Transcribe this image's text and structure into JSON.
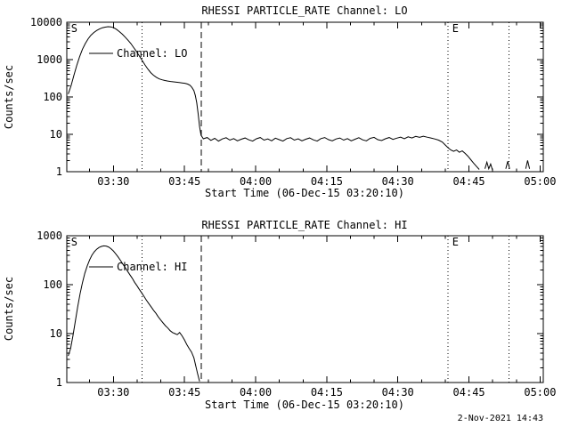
{
  "page": {
    "timestamp": "2-Nov-2021 14:43"
  },
  "chart_data": [
    {
      "id": "lo",
      "type": "line",
      "title": "RHESSI PARTICLE_RATE Channel: LO",
      "xlabel": "Start Time (06-Dec-15 03:20:10)",
      "ylabel": "Counts/sec",
      "legend": "Channel: LO",
      "x_min": 0,
      "x_max": 100.5,
      "x_ticks": [
        {
          "t": 9.83,
          "label": "03:30"
        },
        {
          "t": 24.83,
          "label": "03:45"
        },
        {
          "t": 39.83,
          "label": "04:00"
        },
        {
          "t": 54.83,
          "label": "04:15"
        },
        {
          "t": 69.83,
          "label": "04:30"
        },
        {
          "t": 84.83,
          "label": "04:45"
        },
        {
          "t": 99.83,
          "label": "05:00"
        }
      ],
      "x_minor_start": 4.83,
      "x_minor_step": 5,
      "ylim": [
        1,
        10000
      ],
      "y_ticks": [
        1,
        10,
        100,
        1000,
        10000
      ],
      "grid": false,
      "legend_position": "upper-left-inside",
      "vlines": [
        {
          "t": 15.9,
          "style": "dotted"
        },
        {
          "t": 28.4,
          "style": "dashed"
        },
        {
          "t": 80.4,
          "style": "dotted"
        },
        {
          "t": 93.3,
          "style": "dotted"
        }
      ],
      "flags": [
        {
          "t": 0.9,
          "label": "S"
        },
        {
          "t": 81.3,
          "label": "E"
        }
      ],
      "points": [
        [
          0.3,
          120
        ],
        [
          0.9,
          200
        ],
        [
          1.5,
          380
        ],
        [
          2.1,
          700
        ],
        [
          2.7,
          1200
        ],
        [
          3.3,
          1900
        ],
        [
          3.9,
          2700
        ],
        [
          4.5,
          3600
        ],
        [
          5.1,
          4500
        ],
        [
          5.7,
          5300
        ],
        [
          6.3,
          6000
        ],
        [
          6.9,
          6600
        ],
        [
          7.5,
          7100
        ],
        [
          8.1,
          7400
        ],
        [
          8.7,
          7600
        ],
        [
          9.3,
          7500
        ],
        [
          9.9,
          7100
        ],
        [
          10.5,
          6400
        ],
        [
          11.1,
          5600
        ],
        [
          11.7,
          4800
        ],
        [
          12.3,
          4000
        ],
        [
          12.9,
          3300
        ],
        [
          13.5,
          2700
        ],
        [
          14.1,
          2100
        ],
        [
          14.7,
          1650
        ],
        [
          15.3,
          1250
        ],
        [
          15.9,
          950
        ],
        [
          16.5,
          720
        ],
        [
          17.1,
          560
        ],
        [
          17.7,
          450
        ],
        [
          18.3,
          380
        ],
        [
          18.9,
          335
        ],
        [
          19.5,
          305
        ],
        [
          20.1,
          288
        ],
        [
          20.7,
          276
        ],
        [
          21.3,
          267
        ],
        [
          21.9,
          260
        ],
        [
          22.5,
          254
        ],
        [
          23.1,
          248
        ],
        [
          23.7,
          243
        ],
        [
          24.3,
          238
        ],
        [
          24.9,
          232
        ],
        [
          25.5,
          222
        ],
        [
          26.0,
          205
        ],
        [
          26.4,
          180
        ],
        [
          26.8,
          148
        ],
        [
          27.1,
          110
        ],
        [
          27.4,
          70
        ],
        [
          27.7,
          35
        ],
        [
          28.0,
          16
        ],
        [
          28.3,
          9.5
        ],
        [
          28.8,
          7.6
        ],
        [
          29.6,
          8.2
        ],
        [
          30.4,
          6.9
        ],
        [
          31.2,
          7.8
        ],
        [
          32.0,
          6.6
        ],
        [
          32.8,
          7.5
        ],
        [
          33.6,
          8.1
        ],
        [
          34.4,
          7.0
        ],
        [
          35.2,
          7.7
        ],
        [
          36.0,
          6.7
        ],
        [
          36.8,
          7.4
        ],
        [
          37.6,
          8.0
        ],
        [
          38.4,
          7.1
        ],
        [
          39.2,
          6.6
        ],
        [
          40.0,
          7.6
        ],
        [
          40.8,
          8.2
        ],
        [
          41.6,
          7.0
        ],
        [
          42.4,
          7.5
        ],
        [
          43.2,
          6.7
        ],
        [
          44.0,
          7.9
        ],
        [
          44.8,
          7.2
        ],
        [
          45.6,
          6.6
        ],
        [
          46.4,
          7.7
        ],
        [
          47.2,
          8.1
        ],
        [
          48.0,
          7.0
        ],
        [
          48.8,
          7.6
        ],
        [
          49.6,
          6.7
        ],
        [
          50.4,
          7.4
        ],
        [
          51.2,
          8.0
        ],
        [
          52.0,
          7.1
        ],
        [
          52.8,
          6.6
        ],
        [
          53.6,
          7.7
        ],
        [
          54.4,
          8.2
        ],
        [
          55.2,
          7.2
        ],
        [
          56.0,
          6.7
        ],
        [
          56.8,
          7.5
        ],
        [
          57.6,
          8.0
        ],
        [
          58.4,
          7.0
        ],
        [
          59.2,
          7.7
        ],
        [
          60.0,
          6.7
        ],
        [
          60.8,
          7.4
        ],
        [
          61.6,
          8.1
        ],
        [
          62.4,
          7.1
        ],
        [
          63.2,
          6.7
        ],
        [
          64.0,
          7.8
        ],
        [
          64.8,
          8.3
        ],
        [
          65.6,
          7.2
        ],
        [
          66.4,
          6.8
        ],
        [
          67.2,
          7.6
        ],
        [
          68.0,
          8.2
        ],
        [
          68.8,
          7.3
        ],
        [
          69.6,
          7.9
        ],
        [
          70.4,
          8.4
        ],
        [
          71.2,
          7.6
        ],
        [
          72.0,
          8.6
        ],
        [
          72.8,
          8.0
        ],
        [
          73.6,
          8.8
        ],
        [
          74.4,
          8.3
        ],
        [
          75.2,
          8.9
        ],
        [
          76.0,
          8.4
        ],
        [
          76.8,
          8.0
        ],
        [
          77.6,
          7.5
        ],
        [
          78.4,
          7.0
        ],
        [
          79.2,
          6.2
        ],
        [
          79.8,
          5.2
        ],
        [
          80.4,
          4.4
        ],
        [
          81.0,
          3.8
        ],
        [
          81.6,
          3.5
        ],
        [
          82.2,
          3.8
        ],
        [
          82.8,
          3.3
        ],
        [
          83.4,
          3.6
        ],
        [
          84.0,
          3.1
        ],
        [
          84.6,
          2.6
        ],
        [
          85.2,
          2.1
        ],
        [
          85.8,
          1.7
        ],
        [
          86.4,
          1.4
        ],
        [
          87.0,
          1.15
        ],
        [
          87.6,
          null
        ],
        [
          88.2,
          1.2
        ],
        [
          88.6,
          1.8
        ],
        [
          89.0,
          1.2
        ],
        [
          89.4,
          1.6
        ],
        [
          89.8,
          1.1
        ],
        [
          90.2,
          null
        ],
        [
          92.6,
          1.2
        ],
        [
          93.0,
          1.9
        ],
        [
          93.4,
          1.2
        ],
        [
          93.8,
          null
        ],
        [
          96.8,
          1.2
        ],
        [
          97.2,
          2.0
        ],
        [
          97.6,
          1.2
        ]
      ]
    },
    {
      "id": "hi",
      "type": "line",
      "title": "RHESSI PARTICLE_RATE Channel: HI",
      "xlabel": "Start Time (06-Dec-15 03:20:10)",
      "ylabel": "Counts/sec",
      "legend": "Channel: HI",
      "x_min": 0,
      "x_max": 100.5,
      "x_ticks": [
        {
          "t": 9.83,
          "label": "03:30"
        },
        {
          "t": 24.83,
          "label": "03:45"
        },
        {
          "t": 39.83,
          "label": "04:00"
        },
        {
          "t": 54.83,
          "label": "04:15"
        },
        {
          "t": 69.83,
          "label": "04:30"
        },
        {
          "t": 84.83,
          "label": "04:45"
        },
        {
          "t": 99.83,
          "label": "05:00"
        }
      ],
      "x_minor_start": 4.83,
      "x_minor_step": 5,
      "ylim": [
        1,
        1000
      ],
      "y_ticks": [
        1,
        10,
        100,
        1000
      ],
      "grid": false,
      "legend_position": "upper-left-inside",
      "vlines": [
        {
          "t": 15.9,
          "style": "dotted"
        },
        {
          "t": 28.4,
          "style": "dashed"
        },
        {
          "t": 80.4,
          "style": "dotted"
        },
        {
          "t": 93.3,
          "style": "dotted"
        }
      ],
      "flags": [
        {
          "t": 0.9,
          "label": "S"
        },
        {
          "t": 81.3,
          "label": "E"
        }
      ],
      "points": [
        [
          0.3,
          3.5
        ],
        [
          0.8,
          5
        ],
        [
          1.3,
          9
        ],
        [
          1.8,
          18
        ],
        [
          2.3,
          35
        ],
        [
          2.8,
          65
        ],
        [
          3.3,
          110
        ],
        [
          3.8,
          170
        ],
        [
          4.3,
          240
        ],
        [
          4.8,
          320
        ],
        [
          5.3,
          400
        ],
        [
          5.8,
          470
        ],
        [
          6.3,
          530
        ],
        [
          6.8,
          575
        ],
        [
          7.3,
          605
        ],
        [
          7.8,
          620
        ],
        [
          8.3,
          615
        ],
        [
          8.8,
          590
        ],
        [
          9.3,
          545
        ],
        [
          9.8,
          490
        ],
        [
          10.3,
          430
        ],
        [
          10.8,
          370
        ],
        [
          11.3,
          315
        ],
        [
          11.8,
          265
        ],
        [
          12.3,
          225
        ],
        [
          12.8,
          190
        ],
        [
          13.3,
          160
        ],
        [
          13.8,
          135
        ],
        [
          14.3,
          112
        ],
        [
          14.8,
          95
        ],
        [
          15.3,
          80
        ],
        [
          15.8,
          68
        ],
        [
          16.3,
          57
        ],
        [
          16.8,
          48
        ],
        [
          17.3,
          41
        ],
        [
          17.8,
          35
        ],
        [
          18.3,
          30
        ],
        [
          18.8,
          26
        ],
        [
          19.3,
          22
        ],
        [
          19.8,
          19
        ],
        [
          20.3,
          16.5
        ],
        [
          20.8,
          14.5
        ],
        [
          21.3,
          13
        ],
        [
          21.8,
          11.5
        ],
        [
          22.3,
          10.5
        ],
        [
          22.8,
          10
        ],
        [
          23.3,
          9.5
        ],
        [
          23.8,
          10.5
        ],
        [
          24.3,
          9
        ],
        [
          24.8,
          7.5
        ],
        [
          25.3,
          6
        ],
        [
          25.8,
          5
        ],
        [
          26.3,
          4.2
        ],
        [
          26.8,
          3.2
        ],
        [
          27.2,
          2.2
        ],
        [
          27.6,
          1.5
        ],
        [
          28.0,
          1.05
        ]
      ]
    }
  ]
}
